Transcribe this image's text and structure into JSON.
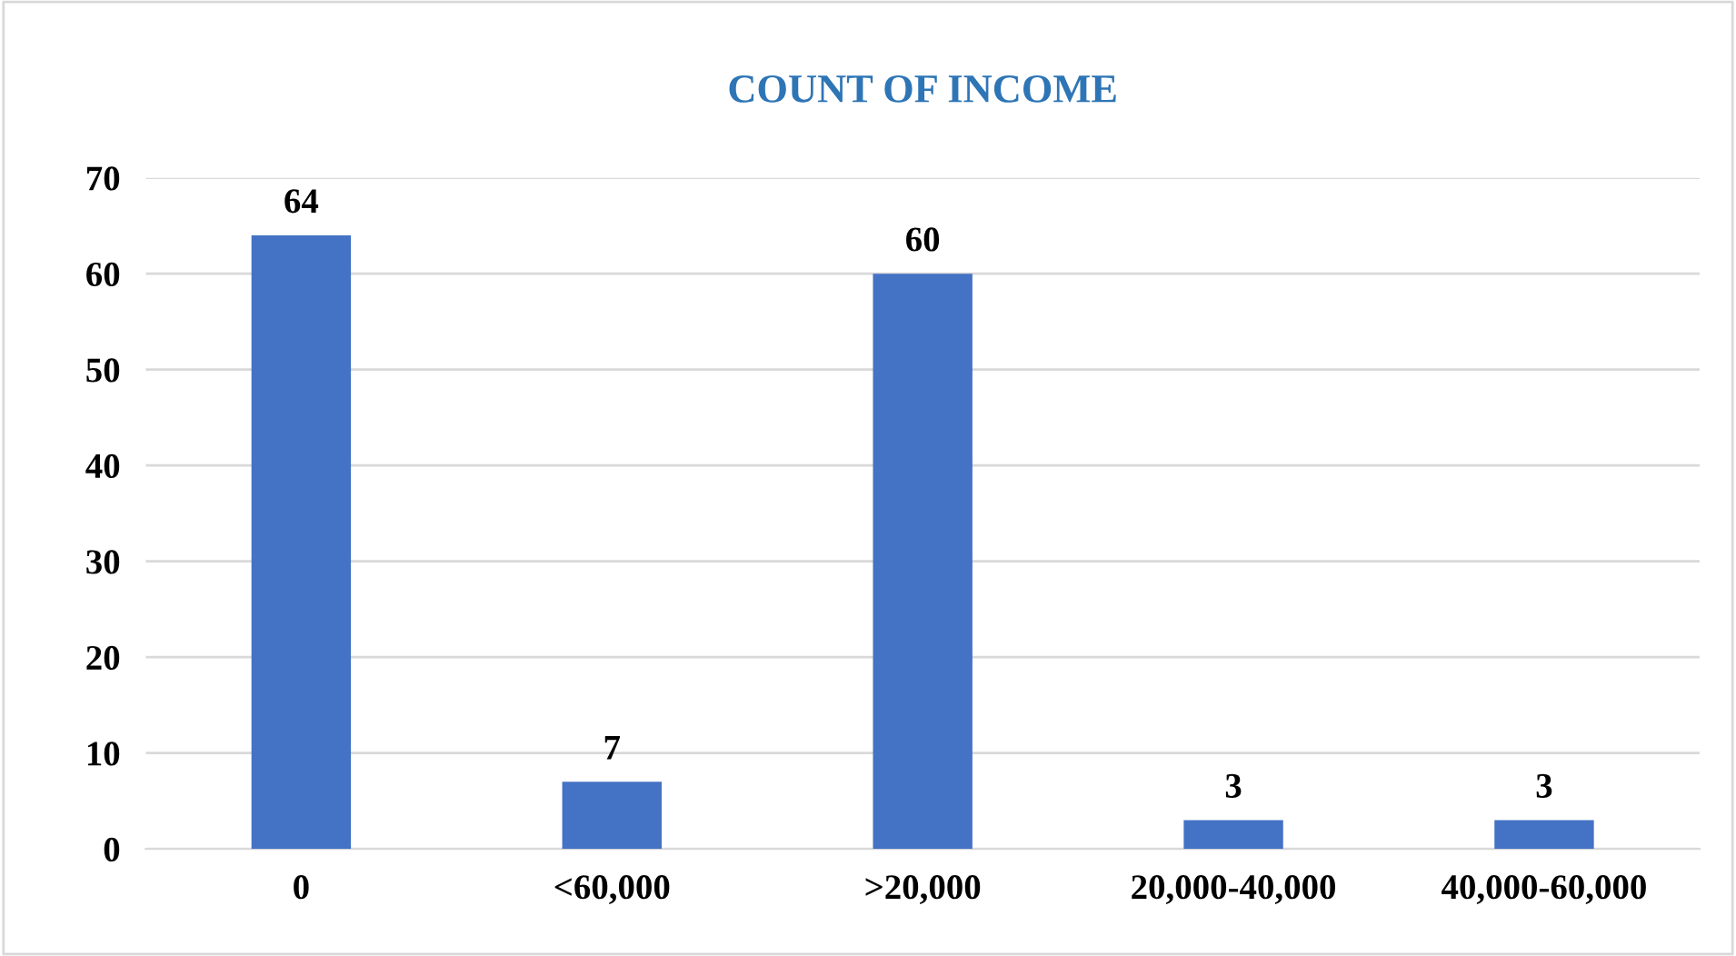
{
  "chart_data": {
    "type": "bar",
    "title": "COUNT OF INCOME",
    "categories": [
      "0",
      "<60,000",
      ">20,000",
      "20,000-40,000",
      "40,000-60,000"
    ],
    "values": [
      64,
      7,
      60,
      3,
      3
    ],
    "color": "#4472c4",
    "ylim": [
      0,
      70
    ],
    "yticks": [
      0,
      10,
      20,
      30,
      40,
      50,
      60,
      70
    ],
    "grid": "y",
    "data_labels": true
  }
}
